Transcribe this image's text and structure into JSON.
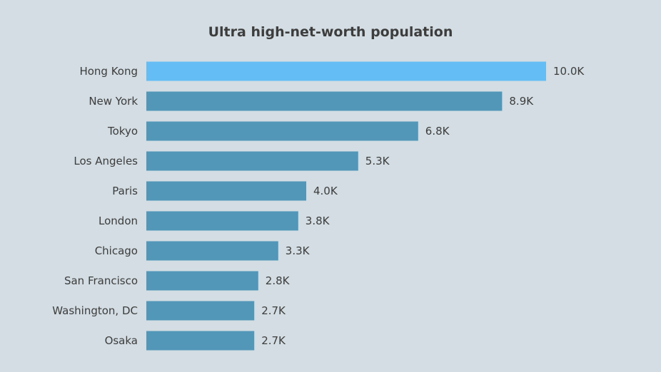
{
  "chart_data": {
    "type": "bar",
    "orientation": "horizontal",
    "title": "Ultra high-net-worth population",
    "xlabel": "",
    "ylabel": "",
    "categories": [
      "Hong Kong",
      "New York",
      "Tokyo",
      "Los Angeles",
      "Paris",
      "London",
      "Chicago",
      "San Francisco",
      "Washington, DC",
      "Osaka"
    ],
    "values": [
      10.0,
      8.9,
      6.8,
      5.3,
      4.0,
      3.8,
      3.3,
      2.8,
      2.7,
      2.7
    ],
    "value_labels": [
      "10.0K",
      "8.9K",
      "6.8K",
      "5.3K",
      "4.0K",
      "3.8K",
      "3.3K",
      "2.8K",
      "2.7K",
      "2.7K"
    ],
    "unit": "K",
    "xlim": [
      0,
      10.0
    ],
    "grid": false,
    "legend": "none",
    "colors": {
      "highlight": "#64bdf4",
      "bar": "#5297b8",
      "background": "#d3dde3",
      "text": "#3d3d3d"
    },
    "highlight_index": 0
  }
}
